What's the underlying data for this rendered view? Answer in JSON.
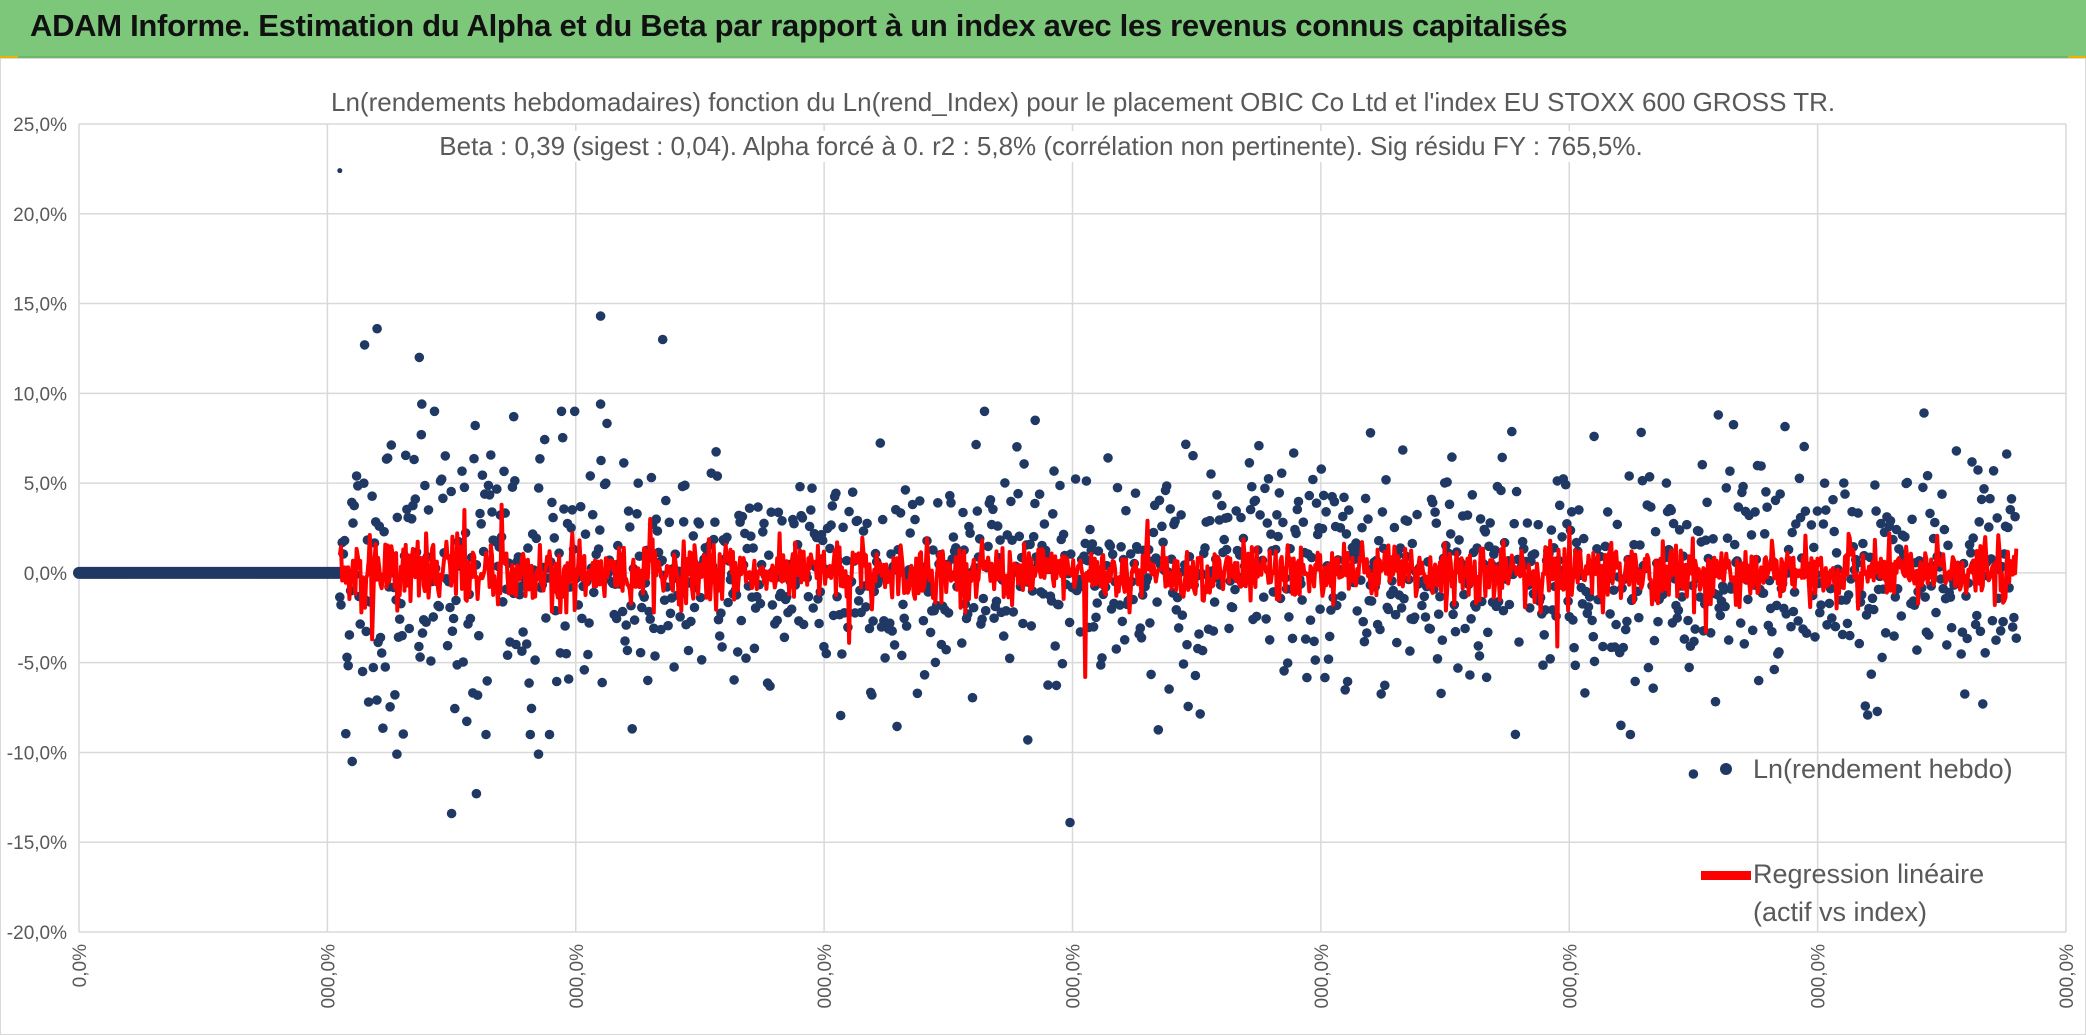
{
  "banner": {
    "title": "ADAM Informe. Estimation du Alpha et du Beta par rapport à un index avec les revenus connus capitalisés",
    "background_color": "#7cc77a",
    "accent_corner_color": "#e8b400"
  },
  "chart_data": {
    "type": "scatter",
    "title": "Ln(rendements hebdomadaires) fonction du Ln(rend_Index) pour le placement OBIC Co Ltd et l'index EU STOXX 600 GROSS TR.",
    "subtitle": "Beta : 0,39 (sigest : 0,04). Alpha forcé à 0. r2 : 5,8% (corrélation non pertinente). Sig résidu FY : 765,5%.",
    "y_tick_labels": [
      "25,0%",
      "20,0%",
      "15,0%",
      "10,0%",
      "5,0%",
      "0,0%",
      "-5,0%",
      "-10,0%",
      "-15,0%",
      "-20,0%"
    ],
    "y_ticks": [
      25,
      20,
      15,
      10,
      5,
      0,
      -5,
      -10,
      -15,
      -20
    ],
    "ylim": [
      -20,
      25
    ],
    "x_tick_labels": [
      "0,0%",
      "000,0%",
      "000,0%",
      "000,0%",
      "000,0%",
      "000,0%",
      "000,0%",
      "000,0%",
      "000,0%"
    ],
    "x_tick_count": 9,
    "grid": true,
    "legend_position": "bottom-right",
    "series": [
      {
        "name": "Ln(rendement hebdo)",
        "kind": "points",
        "color": "#203864",
        "flat_segment": {
          "x_start": 0.0,
          "x_end": 1.05,
          "y": 0.0
        },
        "active_range": {
          "x_start": 1.05,
          "x_end": 7.8
        },
        "notable_points": [
          {
            "x": 1.1,
            "y": -10.5
          },
          {
            "x": 1.15,
            "y": 12.7
          },
          {
            "x": 1.2,
            "y": 13.6
          },
          {
            "x": 1.37,
            "y": 12.0
          },
          {
            "x": 1.38,
            "y": 9.4
          },
          {
            "x": 1.5,
            "y": -13.4
          },
          {
            "x": 1.6,
            "y": -12.3
          },
          {
            "x": 1.85,
            "y": -10.1
          },
          {
            "x": 2.1,
            "y": 9.4
          },
          {
            "x": 2.35,
            "y": 13.0
          },
          {
            "x": 2.1,
            "y": 14.3
          },
          {
            "x": 3.85,
            "y": 8.5
          },
          {
            "x": 3.82,
            "y": -9.3
          },
          {
            "x": 3.99,
            "y": -13.9
          },
          {
            "x": 6.5,
            "y": -11.2
          },
          {
            "x": 6.6,
            "y": 8.8
          },
          {
            "x": 6.1,
            "y": 7.6
          },
          {
            "x": 5.2,
            "y": 7.8
          },
          {
            "x": 1.28,
            "y": -10.1
          },
          {
            "x": 1.75,
            "y": 8.7
          }
        ],
        "typical_spread_pct": 3.0
      },
      {
        "name": "Regression linéaire",
        "legend_line2": "(actif vs index)",
        "kind": "line",
        "color": "#ff0000",
        "beta": 0.39,
        "typical_spread_pct": 0.8,
        "spikes": [
          {
            "x": 1.18,
            "y": -3.7
          },
          {
            "x": 1.55,
            "y": 3.5
          },
          {
            "x": 1.7,
            "y": 3.8
          },
          {
            "x": 3.1,
            "y": -3.9
          },
          {
            "x": 4.3,
            "y": 2.9
          },
          {
            "x": 4.05,
            "y": -5.8
          },
          {
            "x": 6.55,
            "y": -3.3
          },
          {
            "x": 2.3,
            "y": 3.0
          },
          {
            "x": 5.95,
            "y": -4.1
          },
          {
            "x": 6.0,
            "y": 2.5
          }
        ]
      }
    ]
  }
}
